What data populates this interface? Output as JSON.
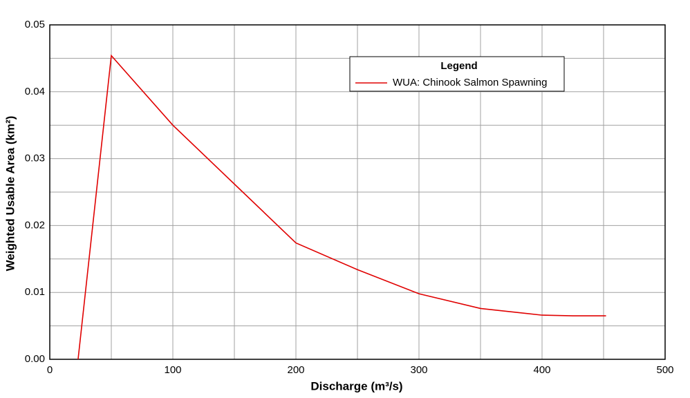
{
  "chart_data": {
    "type": "line",
    "x_label": "Discharge (m³/s)",
    "y_label": "Weighted Usable Area (km²)",
    "legend_title": "Legend",
    "legend_position": "upper right",
    "grid": true,
    "xlim": [
      0,
      500
    ],
    "ylim": [
      0,
      0.05
    ],
    "xticks": [
      0,
      100,
      200,
      300,
      400,
      500
    ],
    "yticks": [
      {
        "value": 0,
        "label": "0.00"
      },
      {
        "value": 0.01,
        "label": "0.01"
      },
      {
        "value": 0.02,
        "label": "0.02"
      },
      {
        "value": 0.03,
        "label": "0.03"
      },
      {
        "value": 0.04,
        "label": "0.04"
      },
      {
        "value": 0.05,
        "label": "0.05"
      }
    ],
    "x_minor_grid": [
      50,
      150,
      250,
      350,
      450
    ],
    "y_minor_grid": [
      0.005,
      0.015,
      0.025,
      0.035,
      0.045
    ],
    "x": [
      23,
      50,
      100,
      150,
      200,
      250,
      300,
      350,
      400,
      425,
      452
    ],
    "series": [
      {
        "name": "WUA: Chinook Salmon Spawning",
        "color": "#e00000",
        "values": [
          0,
          0.0454,
          0.035,
          0.0262,
          0.0174,
          0.0134,
          0.0098,
          0.0076,
          0.0066,
          0.0065,
          0.0065
        ]
      }
    ]
  }
}
